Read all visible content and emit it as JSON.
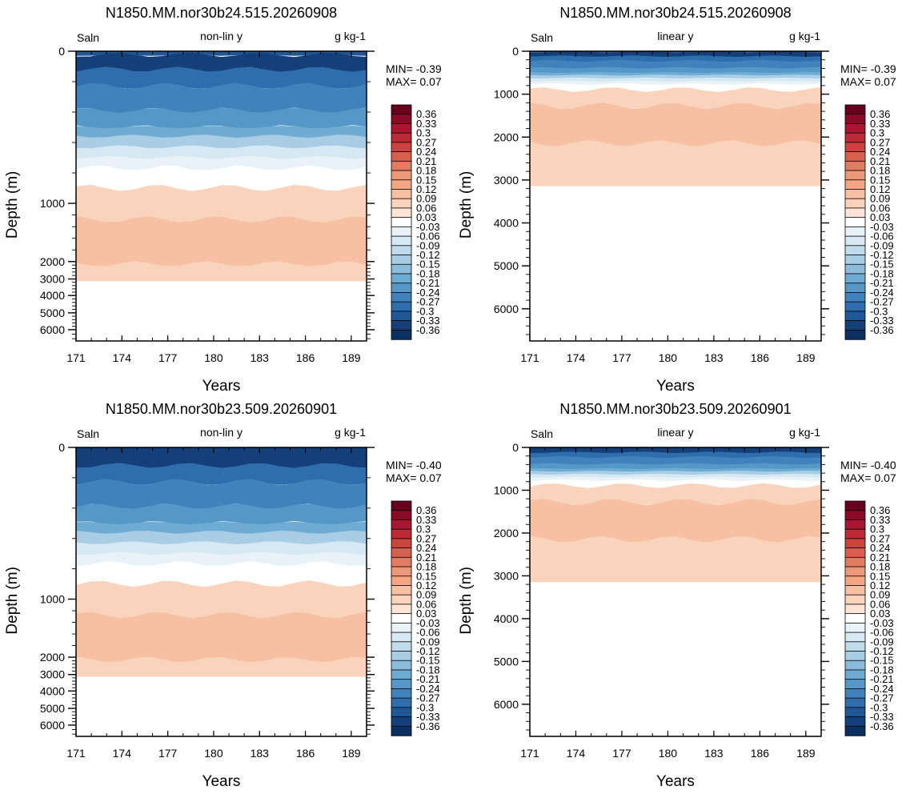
{
  "chart_data": [
    {
      "type": "heatmap",
      "title": "N1850.MM.nor30b24.515.20260908",
      "variable_label": "Saln",
      "scale_label": "non-lin y",
      "units_label": "g kg-1",
      "min_label": "MIN= -0.39",
      "max_label": "MAX=  0.07",
      "xlabel": "Years",
      "ylabel": "Depth (m)",
      "x_ticks": [
        "171",
        "174",
        "177",
        "180",
        "183",
        "186",
        "189"
      ],
      "y_ticks": [
        "0",
        "1000",
        "2000",
        "3000",
        "4000",
        "5000",
        "6000"
      ],
      "xlim": [
        171,
        190
      ],
      "ylim": [
        0,
        6500
      ],
      "y_scale": "non-linear",
      "bands": [
        {
          "top": 0,
          "bottom": 25,
          "value": -0.33
        },
        {
          "top": 25,
          "bottom": 120,
          "value": -0.36
        },
        {
          "top": 120,
          "bottom": 230,
          "value": -0.3
        },
        {
          "top": 230,
          "bottom": 390,
          "value": -0.27
        },
        {
          "top": 390,
          "bottom": 500,
          "value": -0.24
        },
        {
          "top": 500,
          "bottom": 560,
          "value": -0.21
        },
        {
          "top": 560,
          "bottom": 630,
          "value": -0.15
        },
        {
          "top": 630,
          "bottom": 700,
          "value": -0.09
        },
        {
          "top": 700,
          "bottom": 770,
          "value": -0.06
        },
        {
          "top": 770,
          "bottom": 900,
          "value": 0.0
        },
        {
          "top": 900,
          "bottom": 1280,
          "value": 0.06
        },
        {
          "top": 1280,
          "bottom": 2150,
          "value": 0.09
        },
        {
          "top": 2150,
          "bottom": 3150,
          "value": 0.06
        },
        {
          "top": 3150,
          "bottom": 6500,
          "value": 0.0
        }
      ]
    },
    {
      "type": "heatmap",
      "title": "N1850.MM.nor30b24.515.20260908",
      "variable_label": "Saln",
      "scale_label": "linear y",
      "units_label": "g kg-1",
      "min_label": "MIN= -0.39",
      "max_label": "MAX=  0.07",
      "xlabel": "Years",
      "ylabel": "Depth (m)",
      "x_ticks": [
        "171",
        "174",
        "177",
        "180",
        "183",
        "186",
        "189"
      ],
      "y_ticks": [
        "0",
        "1000",
        "2000",
        "3000",
        "4000",
        "5000",
        "6000"
      ],
      "xlim": [
        171,
        190
      ],
      "ylim": [
        0,
        6750
      ],
      "y_scale": "linear",
      "bands": [
        {
          "top": 0,
          "bottom": 25,
          "value": -0.33
        },
        {
          "top": 25,
          "bottom": 120,
          "value": -0.36
        },
        {
          "top": 120,
          "bottom": 230,
          "value": -0.3
        },
        {
          "top": 230,
          "bottom": 390,
          "value": -0.27
        },
        {
          "top": 390,
          "bottom": 500,
          "value": -0.24
        },
        {
          "top": 500,
          "bottom": 560,
          "value": -0.21
        },
        {
          "top": 560,
          "bottom": 630,
          "value": -0.15
        },
        {
          "top": 630,
          "bottom": 700,
          "value": -0.09
        },
        {
          "top": 700,
          "bottom": 770,
          "value": -0.06
        },
        {
          "top": 770,
          "bottom": 900,
          "value": 0.0
        },
        {
          "top": 900,
          "bottom": 1280,
          "value": 0.06
        },
        {
          "top": 1280,
          "bottom": 2150,
          "value": 0.09
        },
        {
          "top": 2150,
          "bottom": 3150,
          "value": 0.06
        },
        {
          "top": 3150,
          "bottom": 6750,
          "value": 0.0
        }
      ]
    },
    {
      "type": "heatmap",
      "title": "N1850.MM.nor30b23.509.20260901",
      "variable_label": "Saln",
      "scale_label": "non-lin y",
      "units_label": "g kg-1",
      "min_label": "MIN= -0.40",
      "max_label": "MAX=  0.07",
      "xlabel": "Years",
      "ylabel": "Depth (m)",
      "x_ticks": [
        "171",
        "174",
        "177",
        "180",
        "183",
        "186",
        "189"
      ],
      "y_ticks": [
        "0",
        "1000",
        "2000",
        "3000",
        "4000",
        "5000",
        "6000"
      ],
      "xlim": [
        171,
        190
      ],
      "ylim": [
        0,
        6500
      ],
      "y_scale": "non-linear",
      "bands": [
        {
          "top": 0,
          "bottom": 120,
          "value": -0.36
        },
        {
          "top": 120,
          "bottom": 230,
          "value": -0.3
        },
        {
          "top": 230,
          "bottom": 390,
          "value": -0.27
        },
        {
          "top": 390,
          "bottom": 500,
          "value": -0.24
        },
        {
          "top": 500,
          "bottom": 560,
          "value": -0.21
        },
        {
          "top": 560,
          "bottom": 630,
          "value": -0.15
        },
        {
          "top": 630,
          "bottom": 700,
          "value": -0.09
        },
        {
          "top": 700,
          "bottom": 770,
          "value": -0.06
        },
        {
          "top": 770,
          "bottom": 900,
          "value": 0.0
        },
        {
          "top": 900,
          "bottom": 1280,
          "value": 0.06
        },
        {
          "top": 1280,
          "bottom": 2150,
          "value": 0.09
        },
        {
          "top": 2150,
          "bottom": 3150,
          "value": 0.06
        },
        {
          "top": 3150,
          "bottom": 6500,
          "value": 0.0
        }
      ]
    },
    {
      "type": "heatmap",
      "title": "N1850.MM.nor30b23.509.20260901",
      "variable_label": "Saln",
      "scale_label": "linear y",
      "units_label": "g kg-1",
      "min_label": "MIN= -0.40",
      "max_label": "MAX=  0.07",
      "xlabel": "Years",
      "ylabel": "Depth (m)",
      "x_ticks": [
        "171",
        "174",
        "177",
        "180",
        "183",
        "186",
        "189"
      ],
      "y_ticks": [
        "0",
        "1000",
        "2000",
        "3000",
        "4000",
        "5000",
        "6000"
      ],
      "xlim": [
        171,
        190
      ],
      "ylim": [
        0,
        6750
      ],
      "y_scale": "linear",
      "bands": [
        {
          "top": 0,
          "bottom": 120,
          "value": -0.36
        },
        {
          "top": 120,
          "bottom": 230,
          "value": -0.3
        },
        {
          "top": 230,
          "bottom": 390,
          "value": -0.27
        },
        {
          "top": 390,
          "bottom": 500,
          "value": -0.24
        },
        {
          "top": 500,
          "bottom": 560,
          "value": -0.21
        },
        {
          "top": 560,
          "bottom": 630,
          "value": -0.15
        },
        {
          "top": 630,
          "bottom": 700,
          "value": -0.09
        },
        {
          "top": 700,
          "bottom": 770,
          "value": -0.06
        },
        {
          "top": 770,
          "bottom": 900,
          "value": 0.0
        },
        {
          "top": 900,
          "bottom": 1280,
          "value": 0.06
        },
        {
          "top": 1280,
          "bottom": 2150,
          "value": 0.09
        },
        {
          "top": 2150,
          "bottom": 3150,
          "value": 0.06
        },
        {
          "top": 3150,
          "bottom": 6750,
          "value": 0.0
        }
      ]
    }
  ],
  "colorbar": {
    "labels": [
      "0.36",
      "0.33",
      "0.3",
      "0.27",
      "0.24",
      "0.21",
      "0.18",
      "0.15",
      "0.12",
      "0.09",
      "0.06",
      "0.03",
      "-0.03",
      "-0.06",
      "-0.09",
      "-0.12",
      "-0.15",
      "-0.18",
      "-0.21",
      "-0.24",
      "-0.27",
      "-0.3",
      "-0.33",
      "-0.36"
    ],
    "colors": [
      "#67001f",
      "#8b0a28",
      "#a8162f",
      "#bb2a35",
      "#c8443e",
      "#d6604d",
      "#e27b62",
      "#ec987b",
      "#f4a582",
      "#f7c0a2",
      "#fad3bd",
      "#fde4d6",
      "#ffffff",
      "#e8f2f8",
      "#d6e8f2",
      "#c0dbec",
      "#a8cde5",
      "#8cbcdb",
      "#6eacd3",
      "#5598c8",
      "#4083bc",
      "#2f6dad",
      "#1f5797",
      "#143f78",
      "#0b2f5e"
    ]
  }
}
